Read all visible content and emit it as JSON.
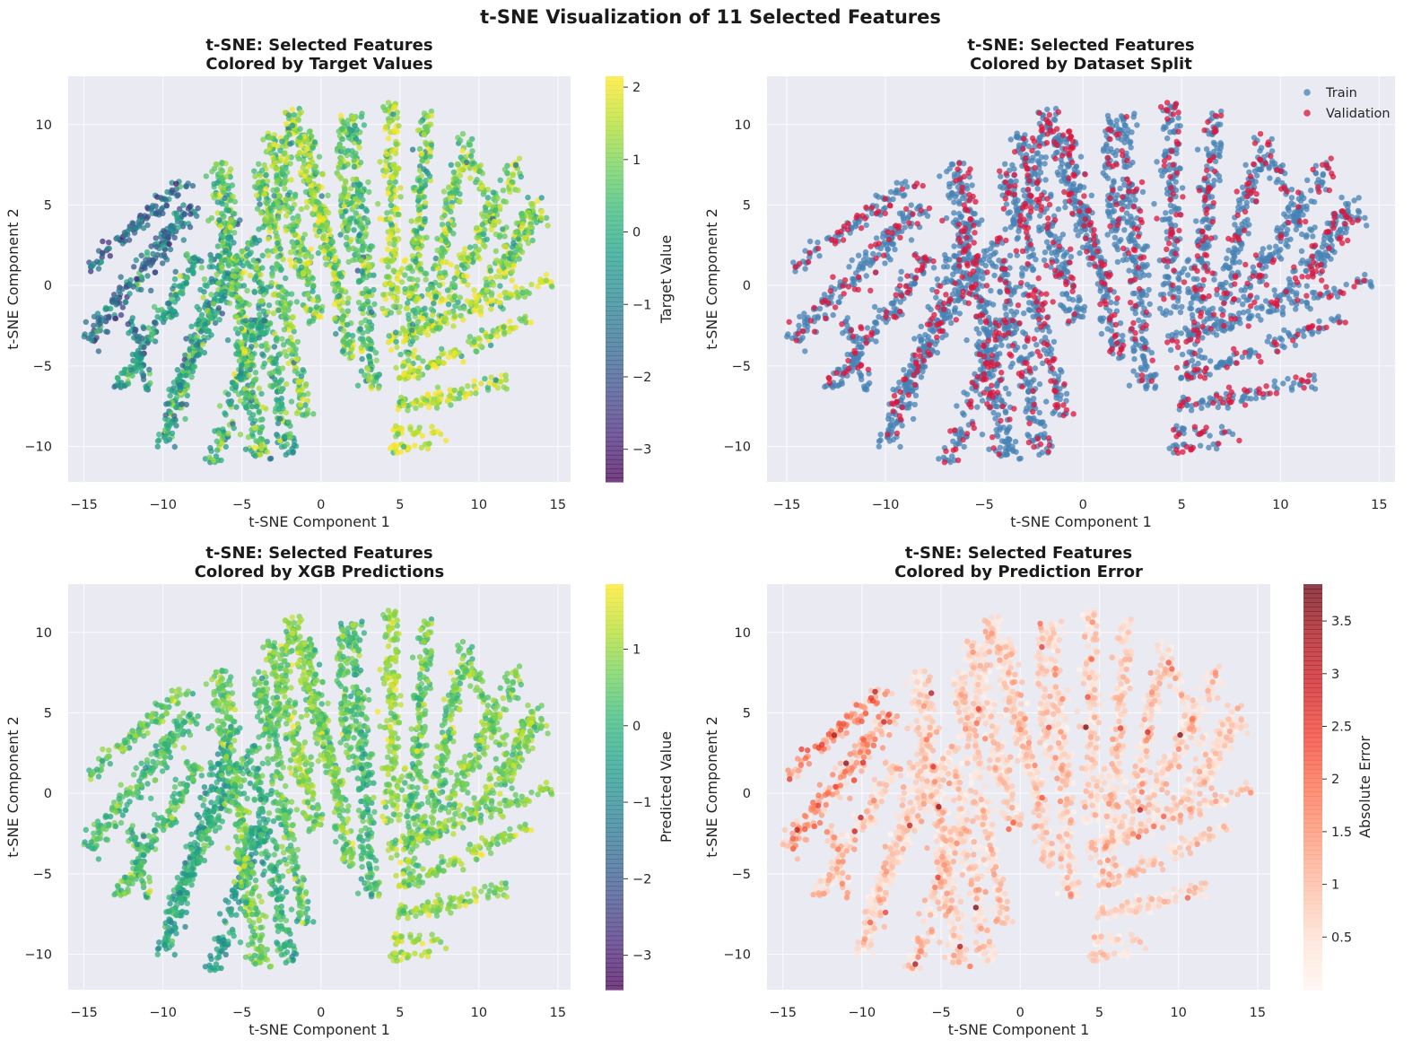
{
  "figure": {
    "title": "t-SNE Visualization of 11 Selected Features"
  },
  "colors": {
    "axes_bg": "#eaeaf2",
    "grid": "#ffffff",
    "train": "#4682b4",
    "validation": "#dc143c"
  },
  "chart_data": [
    {
      "type": "scatter",
      "title": "t-SNE: Selected Features",
      "subtitle": "Colored by Target Values",
      "xlabel": "t-SNE Component 1",
      "ylabel": "t-SNE Component 2",
      "xlim": [
        -16,
        15.8
      ],
      "ylim": [
        -12.2,
        13
      ],
      "xticks": [
        -15,
        -10,
        -5,
        0,
        5,
        10,
        15
      ],
      "yticks": [
        -10,
        -5,
        0,
        5,
        10
      ],
      "grid": true,
      "color_mode": "colormap",
      "colormap": "viridis",
      "colorbar": {
        "label": "Target Value",
        "range": [
          -3.45,
          2.15
        ],
        "ticks": [
          -3,
          -2,
          -1,
          0,
          1,
          2
        ]
      }
    },
    {
      "type": "scatter",
      "title": "t-SNE: Selected Features",
      "subtitle": "Colored by Dataset Split",
      "xlabel": "t-SNE Component 1",
      "ylabel": "t-SNE Component 2",
      "xlim": [
        -16,
        15.8
      ],
      "ylim": [
        -12.2,
        13
      ],
      "xticks": [
        -15,
        -10,
        -5,
        0,
        5,
        10,
        15
      ],
      "yticks": [
        -10,
        -5,
        0,
        5,
        10
      ],
      "grid": true,
      "color_mode": "categorical",
      "legend_position": "top-right",
      "series": [
        {
          "name": "Train",
          "color": "#4682b4"
        },
        {
          "name": "Validation",
          "color": "#dc143c"
        }
      ]
    },
    {
      "type": "scatter",
      "title": "t-SNE: Selected Features",
      "subtitle": "Colored by XGB Predictions",
      "xlabel": "t-SNE Component 1",
      "ylabel": "t-SNE Component 2",
      "xlim": [
        -16,
        15.8
      ],
      "ylim": [
        -12.2,
        13
      ],
      "xticks": [
        -15,
        -10,
        -5,
        0,
        5,
        10,
        15
      ],
      "yticks": [
        -10,
        -5,
        0,
        5,
        10
      ],
      "grid": true,
      "color_mode": "colormap",
      "colormap": "viridis",
      "colorbar": {
        "label": "Predicted Value",
        "range": [
          -3.45,
          1.85
        ],
        "ticks": [
          -3,
          -2,
          -1,
          0,
          1
        ]
      }
    },
    {
      "type": "scatter",
      "title": "t-SNE: Selected Features",
      "subtitle": "Colored by Prediction Error",
      "xlabel": "t-SNE Component 1",
      "ylabel": "t-SNE Component 2",
      "xlim": [
        -16,
        15.8
      ],
      "ylim": [
        -12.2,
        13
      ],
      "xticks": [
        -15,
        -10,
        -5,
        0,
        5,
        10,
        15
      ],
      "yticks": [
        -10,
        -5,
        0,
        5,
        10
      ],
      "grid": true,
      "color_mode": "colormap",
      "colormap": "reds",
      "colorbar": {
        "label": "Absolute Error",
        "range": [
          0,
          3.85
        ],
        "ticks": [
          0.5,
          1.0,
          1.5,
          2.0,
          2.5,
          3.0,
          3.5
        ]
      }
    }
  ]
}
